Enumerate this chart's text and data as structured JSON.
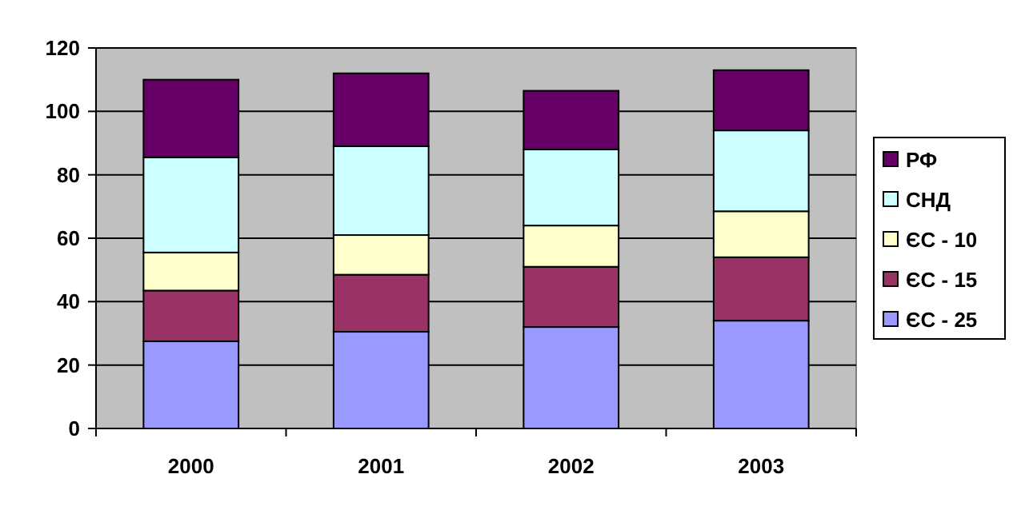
{
  "chart_data": {
    "type": "bar",
    "stacked": true,
    "categories": [
      "2000",
      "2001",
      "2002",
      "2003"
    ],
    "series": [
      {
        "name": "ЄС - 25",
        "color": "#9999ff",
        "values": [
          27.5,
          30.5,
          32,
          34
        ]
      },
      {
        "name": "ЄС - 15",
        "color": "#993366",
        "values": [
          16,
          18,
          19,
          20
        ]
      },
      {
        "name": "ЄС - 10",
        "color": "#ffffcc",
        "values": [
          12,
          12.5,
          13,
          14.5
        ]
      },
      {
        "name": "СНД",
        "color": "#ccffff",
        "values": [
          30,
          28,
          24,
          25.5
        ]
      },
      {
        "name": "РФ",
        "color": "#660066",
        "values": [
          24.5,
          23,
          18.5,
          19
        ]
      }
    ],
    "ylim": [
      0,
      120
    ],
    "yticks": [
      0,
      20,
      40,
      60,
      80,
      100,
      120
    ],
    "grid": "y",
    "legend": "right"
  }
}
